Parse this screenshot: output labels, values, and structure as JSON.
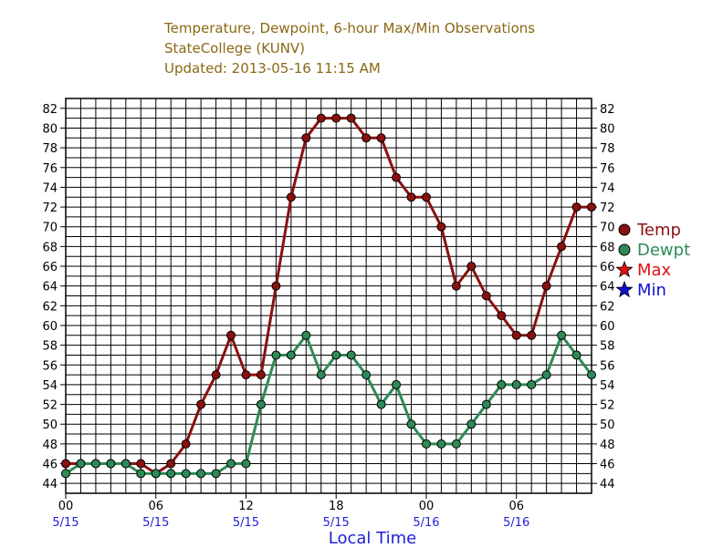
{
  "chart_data": {
    "type": "line",
    "title_lines": [
      "Temperature, Dewpoint, 6-hour Max/Min Observations",
      "StateCollege (KUNV)",
      "Updated: 2013-05-16 11:15 AM"
    ],
    "xlabel": "Local Time",
    "ylim": [
      43,
      83
    ],
    "y_ticks": [
      44,
      46,
      48,
      50,
      52,
      54,
      56,
      58,
      60,
      62,
      64,
      66,
      68,
      70,
      72,
      74,
      76,
      78,
      80,
      82
    ],
    "x_range_hours": [
      0,
      35
    ],
    "x_ticks": [
      {
        "hour": 0,
        "time": "00",
        "date": "5/15"
      },
      {
        "hour": 6,
        "time": "06",
        "date": "5/15"
      },
      {
        "hour": 12,
        "time": "12",
        "date": "5/15"
      },
      {
        "hour": 18,
        "time": "18",
        "date": "5/15"
      },
      {
        "hour": 24,
        "time": "00",
        "date": "5/16"
      },
      {
        "hour": 30,
        "time": "06",
        "date": "5/16"
      }
    ],
    "x_hours": [
      0,
      1,
      2,
      3,
      4,
      5,
      6,
      7,
      8,
      9,
      10,
      11,
      12,
      13,
      14,
      15,
      16,
      17,
      18,
      19,
      20,
      21,
      22,
      23,
      24,
      25,
      26,
      27,
      28,
      29,
      30,
      31,
      32,
      33,
      34,
      35
    ],
    "series": [
      {
        "name": "Temp",
        "color": "#8b1010",
        "values": [
          46,
          46,
          46,
          46,
          46,
          46,
          45,
          46,
          48,
          52,
          55,
          59,
          55,
          55,
          64,
          73,
          79,
          81,
          81,
          81,
          79,
          79,
          75,
          73,
          73,
          70,
          64,
          66,
          63,
          61,
          59,
          59,
          64,
          68,
          72,
          72
        ]
      },
      {
        "name": "Dewpt",
        "color": "#2e8b57",
        "values": [
          45,
          46,
          46,
          46,
          46,
          45,
          45,
          45,
          45,
          45,
          45,
          46,
          46,
          52,
          57,
          57,
          59,
          55,
          57,
          57,
          55,
          52,
          54,
          50,
          48,
          48,
          48,
          50,
          52,
          54,
          54,
          54,
          55,
          59,
          57,
          55
        ]
      }
    ],
    "legend": [
      {
        "label": "Temp",
        "color": "#8b1010",
        "marker": "circle"
      },
      {
        "label": "Dewpt",
        "color": "#2e8b57",
        "marker": "circle"
      },
      {
        "label": "Max",
        "color": "#e01010",
        "marker": "star"
      },
      {
        "label": "Min",
        "color": "#1010d0",
        "marker": "star"
      }
    ]
  }
}
